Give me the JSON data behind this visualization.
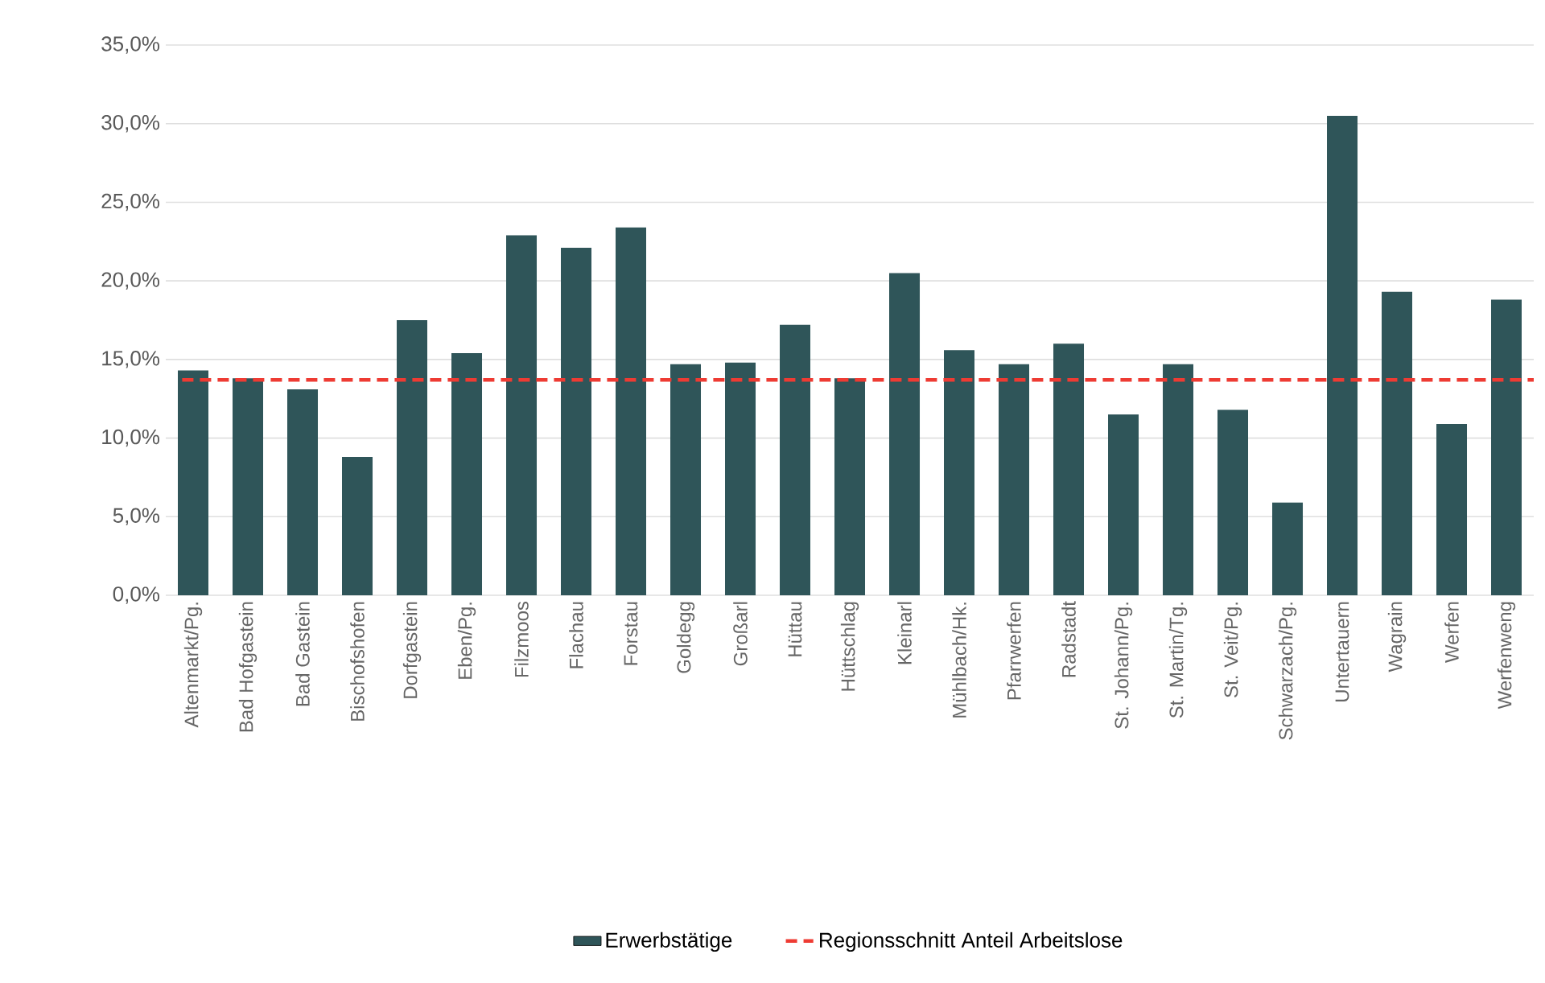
{
  "chart_data": {
    "type": "bar",
    "categories": [
      "Altenmarkt/Pg.",
      "Bad Hofgastein",
      "Bad Gastein",
      "Bischofshofen",
      "Dorfgastein",
      "Eben/Pg.",
      "Filzmoos",
      "Flachau",
      "Forstau",
      "Goldegg",
      "Großarl",
      "Hüttau",
      "Hüttschlag",
      "Kleinarl",
      "Mühlbach/Hk.",
      "Pfarrwerfen",
      "Radstadt",
      "St. Johann/Pg.",
      "St. Martin/Tg.",
      "St. Veit/Pg.",
      "Schwarzach/Pg.",
      "Untertauern",
      "Wagrain",
      "Werfen",
      "Werfenweng"
    ],
    "series": [
      {
        "name": "Erwerbstätige",
        "color": "#2f5559",
        "values": [
          14.3,
          13.8,
          13.1,
          8.8,
          17.5,
          15.4,
          22.9,
          22.1,
          23.4,
          14.7,
          14.8,
          17.2,
          13.8,
          20.5,
          15.6,
          14.7,
          16.0,
          11.5,
          14.7,
          11.8,
          5.9,
          30.5,
          19.3,
          10.9,
          18.8
        ]
      }
    ],
    "ylim": [
      0,
      35
    ],
    "yticks": [
      {
        "value": 0,
        "label": "0,0%"
      },
      {
        "value": 5,
        "label": "5,0%"
      },
      {
        "value": 10,
        "label": "10,0%"
      },
      {
        "value": 15,
        "label": "15,0%"
      },
      {
        "value": 20,
        "label": "20,0%"
      },
      {
        "value": 25,
        "label": "25,0%"
      },
      {
        "value": 30,
        "label": "30,0%"
      },
      {
        "value": 35,
        "label": "35,0%"
      }
    ],
    "ref_lines": [
      {
        "axis": "y",
        "value": 13.7,
        "label": "Regionsschnitt Anteil Arbeitslose",
        "color": "#ee3b33",
        "line_style": "dashed"
      }
    ],
    "grid": "y",
    "legend": "bottom"
  }
}
